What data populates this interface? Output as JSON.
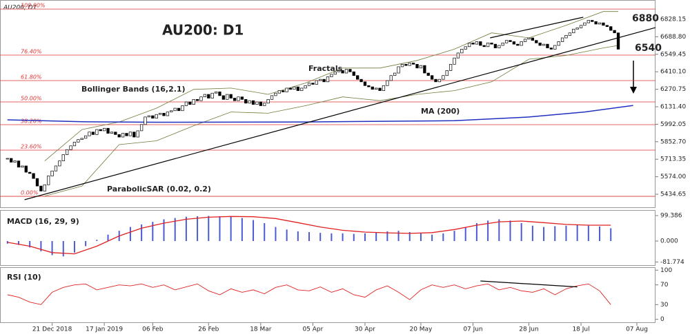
{
  "chart_data": [
    {
      "type": "candlestick",
      "title": "AU200: D1",
      "subtitle": "AU200, D1",
      "close": [
        5720,
        5690,
        5700,
        5650,
        5660,
        5610,
        5600,
        5560,
        5500,
        5460,
        5510,
        5580,
        5620,
        5660,
        5700,
        5750,
        5790,
        5820,
        5850,
        5870,
        5880,
        5900,
        5930,
        5910,
        5950,
        5940,
        5960,
        5920,
        5930,
        5910,
        5890,
        5920,
        5900,
        5930,
        5890,
        5940,
        5990,
        6050,
        6060,
        6040,
        6070,
        6080,
        6060,
        6090,
        6100,
        6120,
        6100,
        6140,
        6170,
        6150,
        6190,
        6180,
        6210,
        6230,
        6200,
        6240,
        6250,
        6220,
        6190,
        6230,
        6200,
        6180,
        6210,
        6190,
        6160,
        6180,
        6150,
        6170,
        6140,
        6160,
        6190,
        6220,
        6240,
        6260,
        6250,
        6280,
        6270,
        6290,
        6260,
        6280,
        6300,
        6320,
        6310,
        6340,
        6350,
        6330,
        6370,
        6390,
        6410,
        6420,
        6400,
        6430,
        6410,
        6380,
        6350,
        6330,
        6300,
        6290,
        6270,
        6280,
        6260,
        6300,
        6340,
        6380,
        6400,
        6450,
        6470,
        6460,
        6480,
        6470,
        6440,
        6460,
        6400,
        6380,
        6350,
        6330,
        6350,
        6380,
        6420,
        6470,
        6520,
        6560,
        6590,
        6610,
        6640,
        6630,
        6650,
        6620,
        6610,
        6640,
        6630,
        6600,
        6620,
        6640,
        6660,
        6650,
        6630,
        6620,
        6650,
        6670,
        6680,
        6660,
        6640,
        6620,
        6630,
        6600,
        6590,
        6620,
        6650,
        6680,
        6700,
        6720,
        6750,
        6760,
        6780,
        6800,
        6820,
        6810,
        6790,
        6800,
        6780,
        6770,
        6740,
        6720,
        6590
      ],
      "up_color": "#ffffff",
      "down_color": "#000000",
      "xlim": [
        -2,
        174
      ],
      "xticks": [
        {
          "value": 12,
          "label": "21 Dec 2018"
        },
        {
          "value": 26,
          "label": "17 Jan 2019"
        },
        {
          "value": 39,
          "label": "06 Feb"
        },
        {
          "value": 54,
          "label": "26 Feb"
        },
        {
          "value": 68,
          "label": "18 Mar"
        },
        {
          "value": 82,
          "label": "05 Apr"
        },
        {
          "value": 96,
          "label": "30 Apr"
        },
        {
          "value": 111,
          "label": "20 May"
        },
        {
          "value": 125,
          "label": "07 Jun"
        },
        {
          "value": 140,
          "label": "28 Jun"
        },
        {
          "value": 154,
          "label": "18 Jul"
        },
        {
          "value": 169,
          "label": "07 Aug"
        }
      ],
      "ylim": [
        5336,
        6938
      ],
      "yticks": [
        6828.15,
        {
          "value": 6688.8,
          "label": "6688.80"
        },
        6549.45,
        {
          "value": 6410.1,
          "label": "6410.10"
        },
        6270.75,
        {
          "value": 6131.4,
          "label": "6131.40"
        },
        5992.05,
        {
          "value": 5852.7,
          "label": "5852.70"
        },
        5713.35,
        {
          "value": 5574,
          "label": "5574.00"
        },
        5434.65
      ],
      "fib_levels": [
        {
          "value": 6910,
          "label": "100.00%"
        },
        {
          "value": 6543,
          "label": "76.40%"
        },
        {
          "value": 6340,
          "label": "61.80%"
        },
        {
          "value": 6170,
          "label": "50.00%"
        },
        {
          "value": 5989,
          "label": "38.20%"
        },
        {
          "value": 5786,
          "label": "23.60%"
        },
        {
          "value": 5418,
          "label": "0.00%"
        }
      ],
      "fib_color": "#d33",
      "ma": {
        "name": "MA (200)",
        "color": "#1f2fbf",
        "x": [
          0,
          20,
          40,
          80,
          120,
          140,
          155,
          168
        ],
        "values": [
          6027,
          6012,
          6008,
          6010,
          6020,
          6050,
          6090,
          6142
        ]
      },
      "bollinger": {
        "name": "Bollinger Bands (16,2.1)",
        "color": "#6b7d3a",
        "x": [
          10,
          20,
          30,
          40,
          50,
          60,
          70,
          80,
          90,
          100,
          110,
          120,
          130,
          140,
          150,
          160,
          164
        ],
        "upper": [
          5700,
          5950,
          6010,
          6120,
          6270,
          6280,
          6230,
          6320,
          6440,
          6440,
          6500,
          6590,
          6720,
          6680,
          6780,
          6890,
          6890
        ],
        "lower": [
          5420,
          5500,
          5830,
          5860,
          5980,
          6090,
          6080,
          6140,
          6210,
          6180,
          6230,
          6260,
          6330,
          6510,
          6540,
          6600,
          6620
        ]
      },
      "trendlines": [
        {
          "x": [
            4.6,
            174
          ],
          "y": [
            5391,
            6762
          ]
        },
        {
          "x": [
            129.6,
            154.6
          ],
          "y": [
            6680,
            6845
          ]
        }
      ],
      "annotations": [
        "Fractals",
        "ParabolicSAR (0.02, 0.2)"
      ],
      "targets": [
        6880,
        6540
      ]
    },
    {
      "type": "macd",
      "title": "MACD (16, 29, 9)",
      "x": [
        0,
        3,
        6,
        9,
        12,
        15,
        18,
        21,
        24,
        27,
        30,
        33,
        36,
        39,
        42,
        45,
        48,
        51,
        54,
        57,
        60,
        63,
        66,
        69,
        72,
        75,
        78,
        81,
        84,
        87,
        90,
        93,
        96,
        99,
        102,
        105,
        108,
        111,
        114,
        117,
        120,
        123,
        126,
        129,
        132,
        135,
        138,
        141,
        144,
        147,
        150,
        153,
        156,
        159,
        162
      ],
      "values": [
        -10,
        -15,
        -25,
        -40,
        -55,
        -60,
        -45,
        -20,
        5,
        25,
        40,
        55,
        65,
        75,
        85,
        90,
        95,
        97,
        98,
        97,
        95,
        90,
        82,
        70,
        55,
        45,
        38,
        35,
        32,
        30,
        30,
        28,
        30,
        35,
        38,
        40,
        35,
        30,
        25,
        30,
        40,
        55,
        70,
        80,
        85,
        80,
        70,
        60,
        55,
        58,
        60,
        62,
        60,
        57,
        50
      ],
      "color": "#4a5bd4",
      "signal": {
        "x": [
          0,
          6,
          12,
          18,
          24,
          30,
          36,
          42,
          48,
          54,
          60,
          66,
          72,
          78,
          84,
          90,
          96,
          102,
          108,
          114,
          120,
          126,
          132,
          138,
          144,
          150,
          156,
          162
        ],
        "values": [
          -5,
          -20,
          -45,
          -50,
          -20,
          20,
          50,
          70,
          85,
          93,
          96,
          95,
          88,
          72,
          55,
          42,
          35,
          32,
          30,
          33,
          45,
          62,
          75,
          78,
          72,
          65,
          62,
          62
        ],
        "color": "#e02020"
      },
      "ylim": [
        -94,
        113
      ],
      "yticks": [
        99.386,
        {
          "value": 0,
          "label": "0.000"
        },
        -81.774
      ]
    },
    {
      "type": "line",
      "title": "RSI (10)",
      "x": [
        0,
        3,
        6,
        9,
        12,
        15,
        18,
        21,
        24,
        27,
        30,
        33,
        36,
        39,
        42,
        45,
        48,
        51,
        54,
        57,
        60,
        63,
        66,
        69,
        72,
        75,
        78,
        81,
        84,
        87,
        90,
        93,
        96,
        99,
        102,
        105,
        108,
        111,
        114,
        117,
        120,
        123,
        126,
        129,
        132,
        135,
        138,
        141,
        144,
        147,
        150,
        153,
        156,
        159,
        162
      ],
      "values": [
        50,
        45,
        35,
        30,
        55,
        65,
        70,
        72,
        60,
        65,
        70,
        68,
        72,
        65,
        70,
        60,
        66,
        72,
        58,
        50,
        62,
        55,
        60,
        52,
        65,
        70,
        60,
        58,
        66,
        55,
        62,
        50,
        45,
        60,
        68,
        55,
        40,
        60,
        70,
        65,
        70,
        62,
        68,
        72,
        60,
        65,
        58,
        55,
        62,
        50,
        62,
        68,
        72,
        58,
        30
      ],
      "color": "#e02020",
      "trendlines": [
        {
          "x": [
            127,
            153
          ],
          "y": [
            78,
            66
          ]
        }
      ],
      "ylim": [
        -6,
        106
      ],
      "yticks": [
        100,
        70,
        30,
        0
      ]
    }
  ]
}
